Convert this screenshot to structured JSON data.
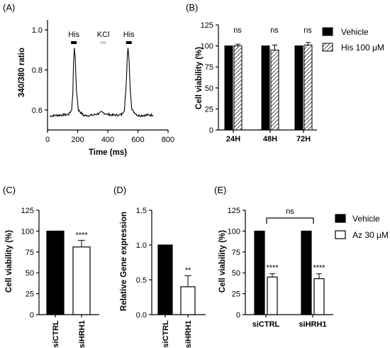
{
  "chart_data": [
    {
      "panel": "(A)",
      "type": "line",
      "xlabel": "Time (ms)",
      "ylabel": "340/380 ratio",
      "xlim": [
        0,
        800
      ],
      "ylim": [
        0.5,
        1.05
      ],
      "xticks": [
        "0",
        "200",
        "400",
        "600",
        "800"
      ],
      "yticks": [
        "0.6",
        "0.8",
        "1.0"
      ],
      "annotations": [
        {
          "label": "His",
          "x_center": 175,
          "color": "#000000"
        },
        {
          "label": "KCl",
          "x_center": 370,
          "color": "#cfcfcf"
        },
        {
          "label": "His",
          "x_center": 540,
          "color": "#000000"
        }
      ],
      "series": [
        {
          "x": [
            15,
            50,
            100,
            140,
            160,
            168,
            173,
            178,
            184,
            192,
            205,
            240,
            300,
            340,
            360,
            380,
            400,
            440,
            490,
            510,
            522,
            529,
            534,
            541,
            549,
            560,
            600,
            650,
            700
          ],
          "values": [
            0.57,
            0.573,
            0.575,
            0.578,
            0.6,
            0.68,
            0.84,
            0.91,
            0.86,
            0.7,
            0.6,
            0.572,
            0.574,
            0.582,
            0.588,
            0.583,
            0.578,
            0.574,
            0.576,
            0.6,
            0.72,
            0.86,
            0.91,
            0.85,
            0.7,
            0.6,
            0.572,
            0.574,
            0.575
          ]
        }
      ]
    },
    {
      "panel": "(B)",
      "type": "bar",
      "ylabel": "Cell viability (%)",
      "ylim": [
        0,
        125
      ],
      "yticks": [
        "0",
        "25",
        "50",
        "75",
        "100",
        "125"
      ],
      "categories": [
        "24H",
        "48H",
        "72H"
      ],
      "series": [
        {
          "name": "Vehicle",
          "values": [
            100,
            100,
            100
          ],
          "errors": [
            0,
            0,
            0
          ],
          "fill": "#000000"
        },
        {
          "name": "His 100 μM",
          "values": [
            100,
            95,
            101
          ],
          "errors": [
            2,
            6,
            3
          ],
          "fill": "hatch"
        }
      ],
      "significance": [
        "ns",
        "ns",
        "ns"
      ],
      "legend": "right"
    },
    {
      "panel": "(C)",
      "type": "bar",
      "ylabel": "Cell viability (%)",
      "ylim": [
        0,
        125
      ],
      "yticks": [
        "0",
        "25",
        "50",
        "75",
        "100",
        "125"
      ],
      "categories": [
        "siCTRL",
        "siHRH1"
      ],
      "values": [
        100,
        81
      ],
      "errors": [
        0,
        8
      ],
      "fills": [
        "#000000",
        "#ffffff"
      ],
      "significance": [
        "",
        "****"
      ]
    },
    {
      "panel": "(D)",
      "type": "bar",
      "ylabel": "Relative Gene expression",
      "ylim": [
        0,
        1.5
      ],
      "yticks": [
        "0.0",
        "0.5",
        "1.0",
        "1.5"
      ],
      "categories": [
        "siCTRL",
        "siHRH1"
      ],
      "values": [
        1.0,
        0.4
      ],
      "errors": [
        0,
        0.16
      ],
      "fills": [
        "#000000",
        "#ffffff"
      ],
      "significance": [
        "",
        "**"
      ]
    },
    {
      "panel": "(E)",
      "type": "bar",
      "ylabel": "Cell viability (%)",
      "ylim": [
        0,
        125
      ],
      "yticks": [
        "0",
        "25",
        "50",
        "75",
        "100",
        "125"
      ],
      "categories": [
        "siCTRL",
        "siHRH1"
      ],
      "series": [
        {
          "name": "Vehicle",
          "values": [
            100,
            100
          ],
          "errors": [
            0,
            0
          ],
          "fill": "#000000"
        },
        {
          "name": "Az 30 μM",
          "values": [
            45,
            43
          ],
          "errors": [
            4,
            6
          ],
          "fill": "#ffffff"
        }
      ],
      "significance": [
        "****",
        "****"
      ],
      "bracket_label": "ns",
      "legend": "right"
    }
  ]
}
